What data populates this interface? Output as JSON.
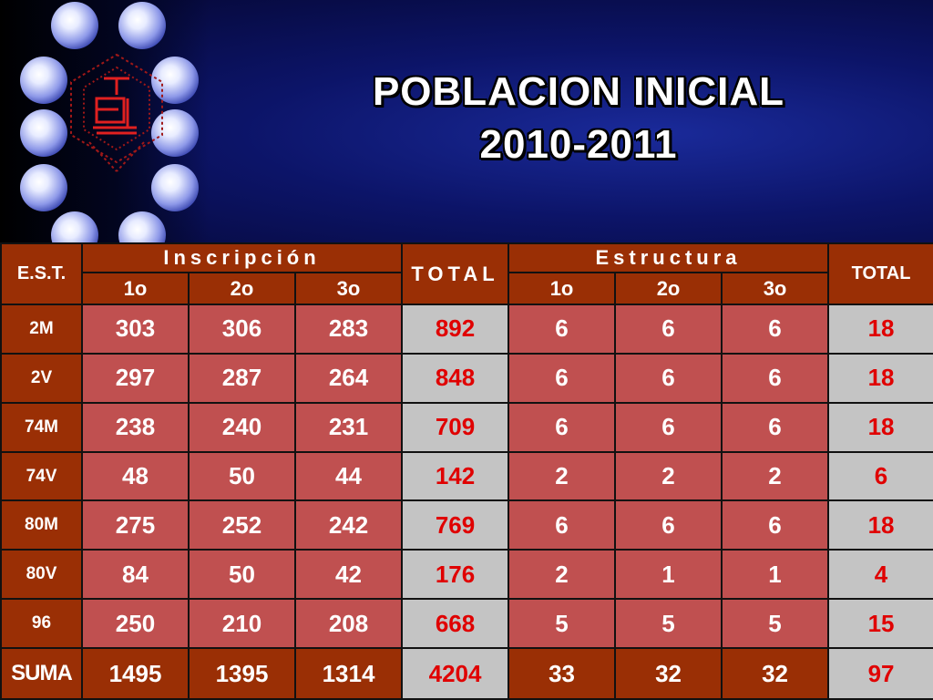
{
  "header": {
    "title_line1": "POBLACION INICIAL",
    "title_line2": "2010-2011",
    "logo_icon": "school-emblem-icon"
  },
  "colors": {
    "header_dark": "#9a2f05",
    "cell_red": "#c05050",
    "total_gray": "#c4c4c4",
    "total_text": "#e00000"
  },
  "table": {
    "col_est": "E.S.T.",
    "group_inscripcion": "Inscripción",
    "group_total": "TOTAL",
    "group_estructura": "Estructura",
    "group_total2": "TOTAL",
    "sub_headers": [
      "1o",
      "2o",
      "3o",
      "1o",
      "2o",
      "3o"
    ],
    "rows": [
      {
        "est": "2M",
        "i1": "303",
        "i2": "306",
        "i3": "283",
        "total": "892",
        "e1": "6",
        "e2": "6",
        "e3": "6",
        "total2": "18"
      },
      {
        "est": "2V",
        "i1": "297",
        "i2": "287",
        "i3": "264",
        "total": "848",
        "e1": "6",
        "e2": "6",
        "e3": "6",
        "total2": "18"
      },
      {
        "est": "74M",
        "i1": "238",
        "i2": "240",
        "i3": "231",
        "total": "709",
        "e1": "6",
        "e2": "6",
        "e3": "6",
        "total2": "18"
      },
      {
        "est": "74V",
        "i1": "48",
        "i2": "50",
        "i3": "44",
        "total": "142",
        "e1": "2",
        "e2": "2",
        "e3": "2",
        "total2": "6"
      },
      {
        "est": "80M",
        "i1": "275",
        "i2": "252",
        "i3": "242",
        "total": "769",
        "e1": "6",
        "e2": "6",
        "e3": "6",
        "total2": "18"
      },
      {
        "est": "80V",
        "i1": "84",
        "i2": "50",
        "i3": "42",
        "total": "176",
        "e1": "2",
        "e2": "1",
        "e3": "1",
        "total2": "4"
      },
      {
        "est": "96",
        "i1": "250",
        "i2": "210",
        "i3": "208",
        "total": "668",
        "e1": "5",
        "e2": "5",
        "e3": "5",
        "total2": "15"
      }
    ],
    "sum": {
      "est": "SUMA",
      "i1": "1495",
      "i2": "1395",
      "i3": "1314",
      "total": "4204",
      "e1": "33",
      "e2": "32",
      "e3": "32",
      "total2": "97"
    }
  }
}
